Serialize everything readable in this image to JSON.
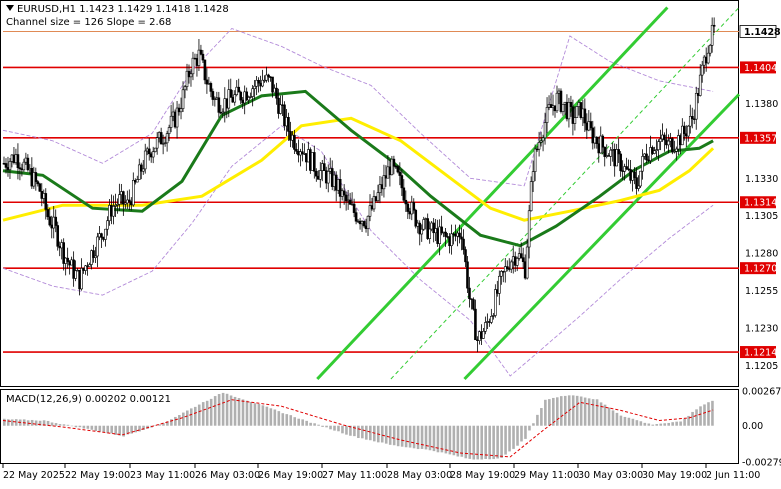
{
  "header": {
    "symbol_line": "EURUSD,H1  1.1423 1.1429 1.1418 1.1428",
    "channel_line": "Channel size = 126 Slope = 2.68"
  },
  "macd": {
    "label": "MACD(12,26,9) 0.00202 0.00121",
    "axis": [
      "0.00267",
      "0.00",
      "-0.00279"
    ]
  },
  "colors": {
    "level_line": "#e00000",
    "candle": "#000000",
    "ma_fast": "#1a7a1a",
    "ma_slow": "#ffee00",
    "channel": "#33cc33",
    "envelope": "#b38bd9",
    "macd_hist": "#b0b0b0",
    "macd_signal": "#e00000",
    "current_price": "#e08a55"
  },
  "chart_data": {
    "type": "candlestick",
    "title": "EURUSD,H1",
    "y_range": [
      1.1192,
      1.1447
    ],
    "y_ticks": [
      1.138,
      1.133,
      1.1305,
      1.128,
      1.1255,
      1.123,
      1.1205
    ],
    "current_price": 1.1428,
    "levels": [
      1.1404,
      1.1357,
      1.1314,
      1.127,
      1.1214
    ],
    "x_labels": [
      "22 May 2025",
      "22 May 19:00",
      "23 May 11:00",
      "26 May 03:00",
      "26 May 19:00",
      "27 May 11:00",
      "28 May 03:00",
      "28 May 19:00",
      "29 May 11:00",
      "30 May 03:00",
      "30 May 19:00",
      "2 Jun 11:00"
    ],
    "price_path": [
      [
        0,
        1.134
      ],
      [
        6,
        1.1345
      ],
      [
        12,
        1.1335
      ],
      [
        18,
        1.1322
      ],
      [
        22,
        1.1305
      ],
      [
        26,
        1.1295
      ],
      [
        30,
        1.128
      ],
      [
        34,
        1.127
      ],
      [
        38,
        1.1262
      ],
      [
        42,
        1.1275
      ],
      [
        46,
        1.1285
      ],
      [
        50,
        1.1295
      ],
      [
        54,
        1.131
      ],
      [
        58,
        1.1315
      ],
      [
        62,
        1.1312
      ],
      [
        66,
        1.1325
      ],
      [
        70,
        1.134
      ],
      [
        74,
        1.135
      ],
      [
        78,
        1.1355
      ],
      [
        82,
        1.1362
      ],
      [
        86,
        1.137
      ],
      [
        90,
        1.1385
      ],
      [
        94,
        1.1405
      ],
      [
        98,
        1.1412
      ],
      [
        102,
        1.1395
      ],
      [
        106,
        1.1382
      ],
      [
        110,
        1.138
      ],
      [
        114,
        1.1383
      ],
      [
        118,
        1.1385
      ],
      [
        122,
        1.1388
      ],
      [
        126,
        1.1392
      ],
      [
        130,
        1.1396
      ],
      [
        134,
        1.1394
      ],
      [
        138,
        1.138
      ],
      [
        142,
        1.1365
      ],
      [
        146,
        1.1355
      ],
      [
        150,
        1.135
      ],
      [
        154,
        1.1342
      ],
      [
        158,
        1.1335
      ],
      [
        162,
        1.1332
      ],
      [
        166,
        1.1328
      ],
      [
        170,
        1.1318
      ],
      [
        174,
        1.131
      ],
      [
        178,
        1.1305
      ],
      [
        182,
        1.1302
      ],
      [
        186,
        1.1312
      ],
      [
        190,
        1.1325
      ],
      [
        194,
        1.1338
      ],
      [
        198,
        1.133
      ],
      [
        202,
        1.1318
      ],
      [
        206,
        1.1305
      ],
      [
        210,
        1.1298
      ],
      [
        214,
        1.1295
      ],
      [
        218,
        1.1292
      ],
      [
        222,
        1.129
      ],
      [
        226,
        1.129
      ],
      [
        230,
        1.1295
      ],
      [
        234,
        1.125
      ],
      [
        238,
        1.1222
      ],
      [
        242,
        1.123
      ],
      [
        246,
        1.1245
      ],
      [
        250,
        1.1262
      ],
      [
        254,
        1.1275
      ],
      [
        258,
        1.128
      ],
      [
        262,
        1.127
      ],
      [
        266,
        1.134
      ],
      [
        270,
        1.136
      ],
      [
        274,
        1.1375
      ],
      [
        278,
        1.1383
      ],
      [
        282,
        1.1378
      ],
      [
        286,
        1.137
      ],
      [
        290,
        1.1376
      ],
      [
        294,
        1.1362
      ],
      [
        298,
        1.1355
      ],
      [
        302,
        1.135
      ],
      [
        306,
        1.1345
      ],
      [
        310,
        1.134
      ],
      [
        314,
        1.1332
      ],
      [
        318,
        1.1325
      ],
      [
        322,
        1.1345
      ],
      [
        326,
        1.1352
      ],
      [
        330,
        1.1355
      ],
      [
        334,
        1.1352
      ],
      [
        338,
        1.1355
      ],
      [
        342,
        1.136
      ],
      [
        346,
        1.137
      ],
      [
        350,
        1.1395
      ],
      [
        354,
        1.142
      ],
      [
        357,
        1.1428
      ]
    ],
    "ma_fast": [
      [
        0,
        1.1335
      ],
      [
        20,
        1.1332
      ],
      [
        45,
        1.131
      ],
      [
        70,
        1.1308
      ],
      [
        90,
        1.1328
      ],
      [
        110,
        1.1372
      ],
      [
        130,
        1.1385
      ],
      [
        152,
        1.1388
      ],
      [
        175,
        1.1362
      ],
      [
        195,
        1.1342
      ],
      [
        215,
        1.1318
      ],
      [
        240,
        1.1292
      ],
      [
        260,
        1.1285
      ],
      [
        278,
        1.1298
      ],
      [
        300,
        1.1318
      ],
      [
        318,
        1.1336
      ],
      [
        335,
        1.1348
      ],
      [
        350,
        1.135
      ],
      [
        357,
        1.1355
      ]
    ],
    "ma_slow": [
      [
        0,
        1.1302
      ],
      [
        30,
        1.1312
      ],
      [
        70,
        1.1312
      ],
      [
        100,
        1.1318
      ],
      [
        130,
        1.1342
      ],
      [
        150,
        1.1365
      ],
      [
        175,
        1.137
      ],
      [
        200,
        1.1355
      ],
      [
        225,
        1.133
      ],
      [
        245,
        1.131
      ],
      [
        262,
        1.1302
      ],
      [
        285,
        1.1308
      ],
      [
        310,
        1.1315
      ],
      [
        330,
        1.1322
      ],
      [
        345,
        1.1335
      ],
      [
        357,
        1.135
      ]
    ],
    "channel": {
      "upper": [
        [
          158,
          1.1196
        ],
        [
          334,
          1.1444
        ]
      ],
      "middle": [
        [
          195,
          1.1196
        ],
        [
          370,
          1.1444
        ]
      ],
      "lower": [
        [
          232,
          1.1196
        ],
        [
          370,
          1.1386
        ]
      ]
    },
    "envelope_upper": [
      [
        0,
        1.1362
      ],
      [
        25,
        1.1355
      ],
      [
        50,
        1.134
      ],
      [
        75,
        1.136
      ],
      [
        95,
        1.1402
      ],
      [
        115,
        1.143
      ],
      [
        140,
        1.1418
      ],
      [
        160,
        1.1405
      ],
      [
        185,
        1.1392
      ],
      [
        210,
        1.136
      ],
      [
        235,
        1.133
      ],
      [
        262,
        1.1325
      ],
      [
        285,
        1.1425
      ],
      [
        305,
        1.1408
      ],
      [
        330,
        1.1395
      ],
      [
        357,
        1.1388
      ]
    ],
    "envelope_lower": [
      [
        0,
        1.127
      ],
      [
        25,
        1.1258
      ],
      [
        50,
        1.1252
      ],
      [
        75,
        1.1268
      ],
      [
        95,
        1.13
      ],
      [
        115,
        1.1338
      ],
      [
        140,
        1.1365
      ],
      [
        160,
        1.1348
      ],
      [
        185,
        1.1295
      ],
      [
        210,
        1.1262
      ],
      [
        235,
        1.1235
      ],
      [
        255,
        1.1198
      ],
      [
        270,
        1.1215
      ],
      [
        290,
        1.1238
      ],
      [
        310,
        1.1262
      ],
      [
        335,
        1.129
      ],
      [
        357,
        1.1312
      ]
    ],
    "macd_range": [
      -0.00279,
      0.00267
    ],
    "macd_hist": [
      [
        0,
        0.0005
      ],
      [
        20,
        0.0004
      ],
      [
        40,
        -0.0002
      ],
      [
        60,
        -0.0008
      ],
      [
        80,
        0.0002
      ],
      [
        100,
        0.0018
      ],
      [
        110,
        0.00255
      ],
      [
        125,
        0.0018
      ],
      [
        140,
        0.001
      ],
      [
        155,
        0.0002
      ],
      [
        175,
        -0.0008
      ],
      [
        195,
        -0.0015
      ],
      [
        215,
        -0.0019
      ],
      [
        235,
        -0.0026
      ],
      [
        250,
        -0.0025
      ],
      [
        262,
        -0.001
      ],
      [
        272,
        0.002
      ],
      [
        285,
        0.0024
      ],
      [
        298,
        0.002
      ],
      [
        310,
        0.0008
      ],
      [
        325,
        0.0001
      ],
      [
        340,
        0.0003
      ],
      [
        350,
        0.0015
      ],
      [
        357,
        0.00202
      ]
    ],
    "macd_signal": [
      [
        0,
        0.0004
      ],
      [
        30,
        -0.0001
      ],
      [
        60,
        -0.0007
      ],
      [
        90,
        0.0006
      ],
      [
        115,
        0.002
      ],
      [
        140,
        0.0015
      ],
      [
        170,
        0.0001
      ],
      [
        200,
        -0.0011
      ],
      [
        230,
        -0.0021
      ],
      [
        255,
        -0.0024
      ],
      [
        272,
        -0.0003
      ],
      [
        290,
        0.0018
      ],
      [
        310,
        0.0012
      ],
      [
        330,
        0.0004
      ],
      [
        345,
        0.0006
      ],
      [
        357,
        0.00121
      ]
    ]
  }
}
